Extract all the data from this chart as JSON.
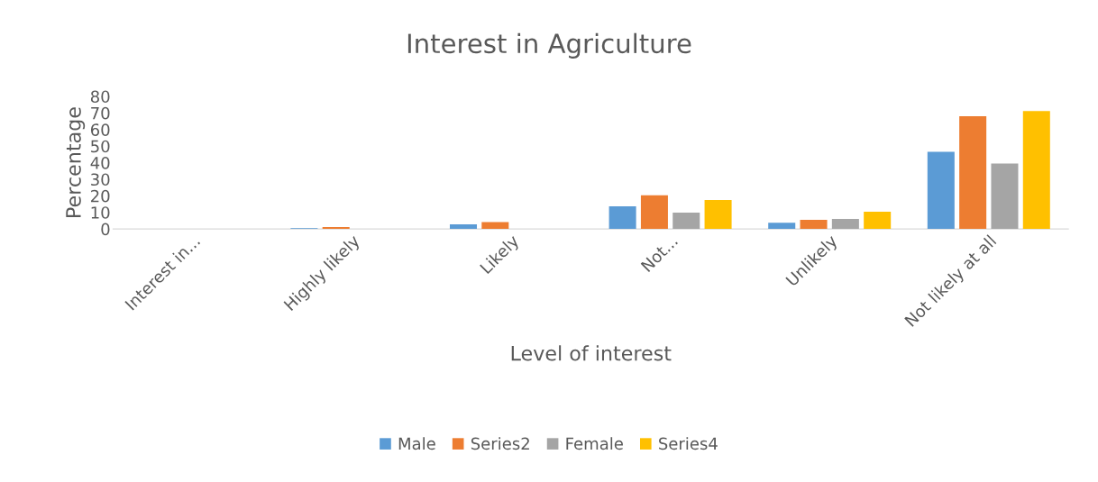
{
  "chart_data": {
    "type": "bar",
    "title": "Interest in Agriculture",
    "xlabel": "Level of interest",
    "ylabel": "Percentage",
    "categories": [
      "Interest in...",
      "Highly likely",
      "Likely",
      "Not...",
      "Unlikely",
      "Not likely at all"
    ],
    "series": [
      {
        "name": "Male",
        "color": "#5b9bd5",
        "values": [
          0,
          0.5,
          2.8,
          13.7,
          3.8,
          46.6
        ]
      },
      {
        "name": "Series2",
        "color": "#ed7d31",
        "values": [
          0,
          1.2,
          4.2,
          20.3,
          5.5,
          68
        ]
      },
      {
        "name": "Female",
        "color": "#a5a5a5",
        "values": [
          0,
          0,
          0,
          9.9,
          6,
          39.5
        ]
      },
      {
        "name": "Series4",
        "color": "#ffc000",
        "values": [
          0,
          0,
          0,
          17.5,
          10.4,
          71.2
        ]
      }
    ],
    "ylim": [
      0,
      80
    ],
    "yticks": [
      0,
      10,
      20,
      30,
      40,
      50,
      60,
      70,
      80
    ],
    "grid": false,
    "legend": "bottom"
  }
}
